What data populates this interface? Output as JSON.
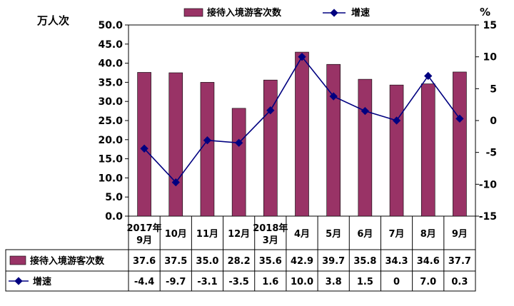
{
  "chart_data": {
    "type": "bar",
    "title": "",
    "y_left_unit": "万人次",
    "y_right_unit": "%",
    "ylim_left": [
      0,
      50
    ],
    "ylim_right": [
      -15,
      15
    ],
    "yticks_left": [
      "0.0",
      "5.0",
      "10.0",
      "15.0",
      "20.0",
      "25.0",
      "30.0",
      "35.0",
      "40.0",
      "45.0",
      "50.0"
    ],
    "yticks_right": [
      "-15",
      "-10",
      "-5",
      "0",
      "5",
      "10",
      "15"
    ],
    "categories": [
      [
        "2017年",
        "9月"
      ],
      [
        "10月"
      ],
      [
        "11月"
      ],
      [
        "12月"
      ],
      [
        "2018年",
        "3月"
      ],
      [
        "4月"
      ],
      [
        "5月"
      ],
      [
        "6月"
      ],
      [
        "7月"
      ],
      [
        "8月"
      ],
      [
        "9月"
      ]
    ],
    "series": [
      {
        "name": "接待入境游客次数",
        "type": "bar",
        "axis": "left",
        "color": "#993366",
        "values": [
          37.6,
          37.5,
          35.0,
          28.2,
          35.6,
          42.9,
          39.7,
          35.8,
          34.3,
          34.6,
          37.7
        ],
        "labels": [
          "37.6",
          "37.5",
          "35.0",
          "28.2",
          "35.6",
          "42.9",
          "39.7",
          "35.8",
          "34.3",
          "34.6",
          "37.7"
        ]
      },
      {
        "name": "增速",
        "type": "line",
        "axis": "right",
        "color": "#000080",
        "values": [
          -4.4,
          -9.7,
          -3.1,
          -3.5,
          1.6,
          10.0,
          3.8,
          1.5,
          0,
          7.0,
          0.3
        ],
        "labels": [
          "-4.4",
          "-9.7",
          "-3.1",
          "-3.5",
          "1.6",
          "10.0",
          "3.8",
          "1.5",
          "0",
          "7.0",
          "0.3"
        ]
      }
    ],
    "legend": "top",
    "grid": false
  }
}
